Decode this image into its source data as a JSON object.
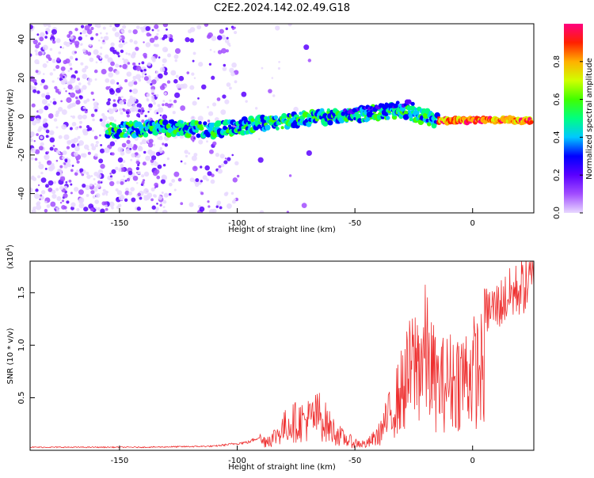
{
  "title": "C2E2.2024.142.02.49.G18",
  "chart_data": [
    {
      "type": "heatmap",
      "title": "",
      "xlabel": "Height of straight line (km)",
      "ylabel": "Frequency (Hz)",
      "xlim": [
        -188,
        26
      ],
      "ylim": [
        -50,
        48
      ],
      "x_ticks": [
        -150,
        -100,
        -50,
        0
      ],
      "y_ticks": [
        -40,
        -20,
        0,
        20,
        40
      ],
      "grid": false,
      "trace": {
        "description_points_x": [
          -155,
          -130,
          -110,
          -90,
          -70,
          -50,
          -30,
          -15,
          0,
          25
        ],
        "description_points_y": [
          -7,
          -6,
          -7,
          -4,
          -1,
          1,
          3,
          -2,
          -2,
          -2
        ]
      },
      "colorbar": {
        "label": "Normalized spectral amplitude",
        "range": [
          0,
          1
        ],
        "ticks": [
          "0.0",
          "0.2",
          "0.4",
          "0.6",
          "0.8"
        ],
        "colors": [
          "#e8d8ff",
          "#a24dff",
          "#5a00ff",
          "#0000ff",
          "#00c8ff",
          "#00ff80",
          "#40ff00",
          "#d0ff00",
          "#ffb000",
          "#ff2000",
          "#ff0080"
        ]
      }
    },
    {
      "type": "line",
      "title": "",
      "xlabel": "Height of straight line (km)",
      "ylabel": "SNR (10 * v/v)",
      "scale_label": "(x10",
      "scale_exp": "4",
      "scale_close": ")",
      "xlim": [
        -188,
        26
      ],
      "ylim": [
        0,
        18000
      ],
      "x_ticks": [
        -150,
        -100,
        -50,
        0
      ],
      "y_ticks": [
        5000,
        10000,
        15000
      ],
      "y_tick_labels": [
        "0.5",
        "1.0",
        "1.5"
      ],
      "grid": false,
      "color": "#ee3030",
      "envelope": {
        "x": [
          -188,
          -140,
          -110,
          -95,
          -85,
          -78,
          -70,
          -65,
          -60,
          -55,
          -50,
          -45,
          -40,
          -35,
          -30,
          -25,
          -20,
          -15,
          -10,
          -5,
          0,
          5,
          10,
          15,
          20,
          26
        ],
        "y": [
          300,
          300,
          400,
          800,
          2000,
          4500,
          5000,
          5800,
          3500,
          2000,
          1200,
          1000,
          2500,
          6000,
          10000,
          14000,
          16000,
          10500,
          11500,
          12000,
          13000,
          13500,
          14000,
          15000,
          15800,
          16500
        ]
      }
    }
  ]
}
